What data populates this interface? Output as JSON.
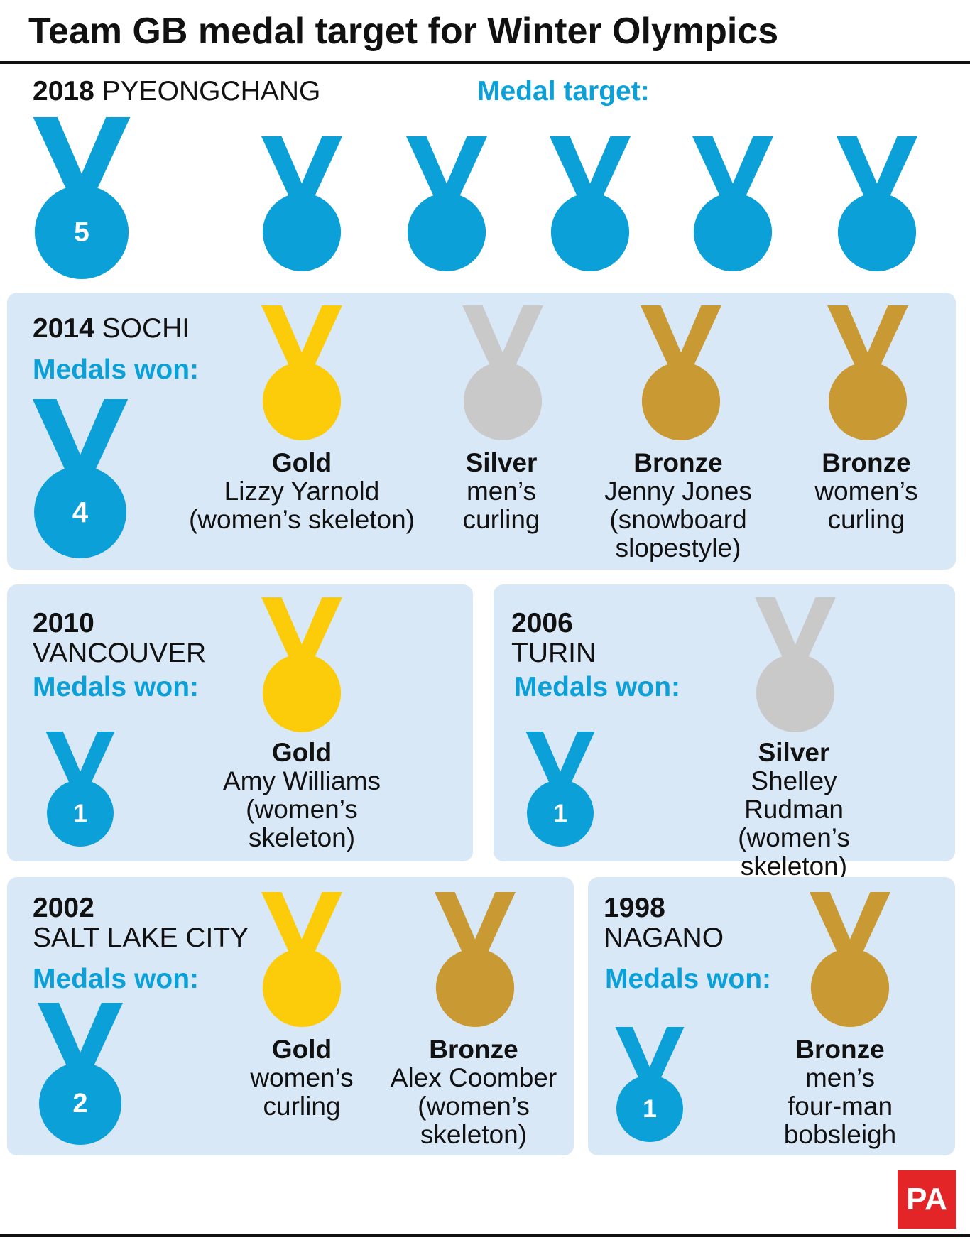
{
  "title": "Team GB medal target for Winter Olympics",
  "colors": {
    "blue": "#0ba0d8",
    "gold": "#fccb0a",
    "silver": "#c9c9c9",
    "bronze": "#c99933",
    "panel": "#d9e8f6",
    "pa_red": "#e42528"
  },
  "target": {
    "year": "2018",
    "place": "PYEONGCHANG",
    "label": "Medal target:",
    "count": "5"
  },
  "sochi": {
    "year": "2014",
    "place": "SOCHI",
    "label": "Medals won:",
    "count": "4",
    "medals": [
      {
        "kind": "Gold",
        "text": "Lizzy Yarnold\n(women’s skeleton)"
      },
      {
        "kind": "Silver",
        "text": "men’s\ncurling"
      },
      {
        "kind": "Bronze",
        "text": "Jenny Jones\n(snowboard\nslopestyle)"
      },
      {
        "kind": "Bronze",
        "text": "women’s\ncurling"
      }
    ]
  },
  "vancouver": {
    "year": "2010",
    "place": "VANCOUVER",
    "label": "Medals won:",
    "count": "1",
    "medals": [
      {
        "kind": "Gold",
        "text": "Amy Williams\n(women’s\nskeleton)"
      }
    ]
  },
  "turin": {
    "year": "2006",
    "place": "TURIN",
    "label": "Medals won:",
    "count": "1",
    "medals": [
      {
        "kind": "Silver",
        "text": "Shelley Rudman\n(women’s skeleton)"
      }
    ]
  },
  "saltlake": {
    "year": "2002",
    "place": "SALT LAKE CITY",
    "label": "Medals won:",
    "count": "2",
    "medals": [
      {
        "kind": "Gold",
        "text": "women’s\ncurling"
      },
      {
        "kind": "Bronze",
        "text": "Alex Coomber\n(women’s\nskeleton)"
      }
    ]
  },
  "nagano": {
    "year": "1998",
    "place": "NAGANO",
    "label": "Medals won:",
    "count": "1",
    "medals": [
      {
        "kind": "Bronze",
        "text": "men’s four-man\nbobsleigh"
      }
    ]
  },
  "logo": "PA"
}
